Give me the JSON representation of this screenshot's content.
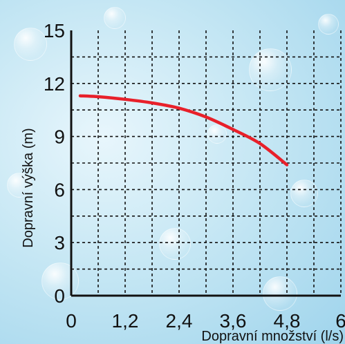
{
  "chart_data": {
    "type": "line",
    "xlabel": "Dopravní množství (l/s)",
    "ylabel": "Dopravní výška (m)",
    "xlim": [
      0,
      6
    ],
    "ylim": [
      0,
      15
    ],
    "x_ticks": [
      0,
      1.2,
      2.4,
      3.6,
      4.8,
      6
    ],
    "x_tick_labels": [
      "0",
      "1,2",
      "2,4",
      "3,6",
      "4,8",
      "6"
    ],
    "y_ticks": [
      0,
      3,
      6,
      9,
      12,
      15
    ],
    "y_tick_labels": [
      "0",
      "3",
      "6",
      "9",
      "12",
      "15"
    ],
    "grid": true,
    "grid_style": "dashed",
    "series": [
      {
        "color": "#e8202a",
        "x": [
          0.2,
          0.6,
          1.2,
          1.8,
          2.4,
          3.0,
          3.6,
          4.2,
          4.8
        ],
        "y": [
          11.3,
          11.25,
          11.1,
          10.9,
          10.6,
          10.1,
          9.4,
          8.6,
          7.4
        ]
      }
    ]
  }
}
